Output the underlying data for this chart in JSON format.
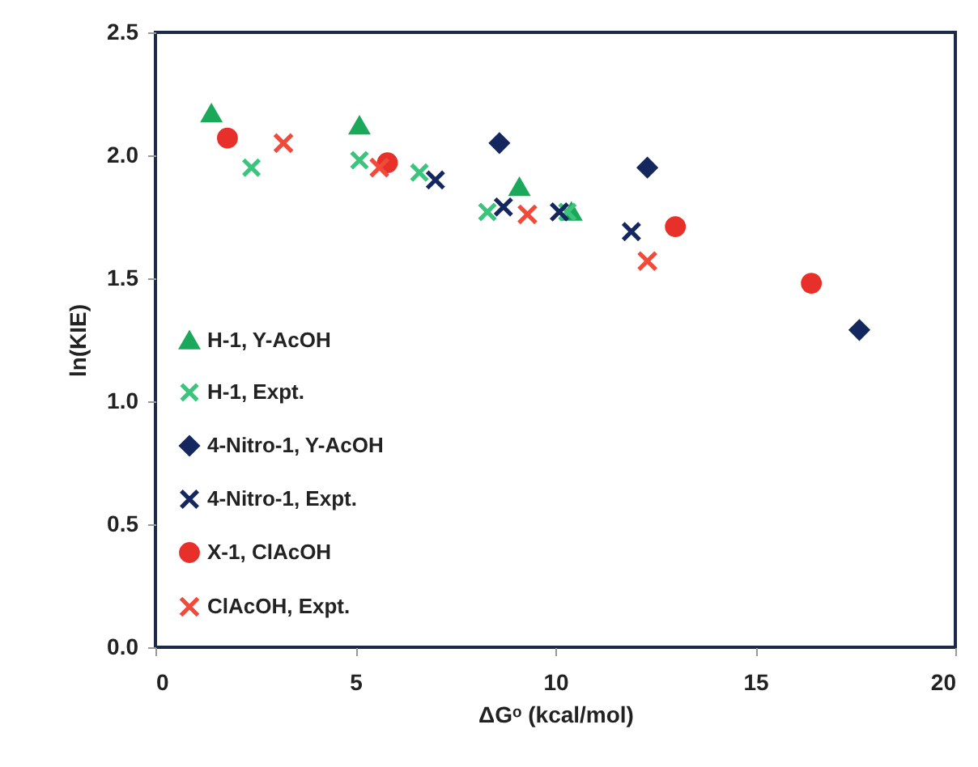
{
  "chart_data": {
    "type": "scatter",
    "xlabel": "ΔGᵒ (kcal/mol)",
    "ylabel": "ln(KIE)",
    "xlim": [
      0,
      20
    ],
    "xticks": [
      0,
      5,
      10,
      15,
      20
    ],
    "ylim": [
      0,
      2.5
    ],
    "yticks": [
      {
        "value": 0,
        "label": "0.0"
      },
      0.5,
      {
        "value": 1,
        "label": "1.0"
      },
      1.5,
      {
        "value": 2,
        "label": "2.0"
      },
      2.5
    ],
    "grid": false,
    "legend": "bottom left",
    "series": [
      {
        "name": "H-1, Y-AcOH",
        "color": "#1aa85a",
        "marker": "triangle",
        "x": [
          1.4,
          5.1,
          9.1,
          10.4
        ],
        "values": [
          2.17,
          2.12,
          1.87,
          1.77
        ]
      },
      {
        "name": "H-1, Expt.",
        "color": "#3cc47c",
        "marker": "cross",
        "x": [
          2.4,
          5.1,
          6.6,
          8.3,
          10.3
        ],
        "values": [
          1.95,
          1.98,
          1.93,
          1.77,
          1.77
        ]
      },
      {
        "name": "4-Nitro-1, Y-AcOH",
        "color": "#14275e",
        "marker": "diamond",
        "x": [
          8.6,
          12.3,
          17.6
        ],
        "values": [
          2.05,
          1.95,
          1.29
        ]
      },
      {
        "name": "4-Nitro-1, Expt.",
        "color": "#14275e",
        "marker": "cross",
        "x": [
          7.0,
          8.7,
          10.1,
          11.9
        ],
        "values": [
          1.9,
          1.79,
          1.77,
          1.69
        ]
      },
      {
        "name": "X-1, ClAcOH",
        "color": "#e8302a",
        "marker": "circle",
        "x": [
          1.8,
          5.8,
          13.0,
          16.4
        ],
        "values": [
          2.07,
          1.97,
          1.71,
          1.48
        ]
      },
      {
        "name": "ClAcOH, Expt.",
        "color": "#f04a3a",
        "marker": "cross",
        "x": [
          3.2,
          5.6,
          9.3,
          12.3
        ],
        "values": [
          2.05,
          1.95,
          1.76,
          1.57
        ]
      }
    ]
  }
}
